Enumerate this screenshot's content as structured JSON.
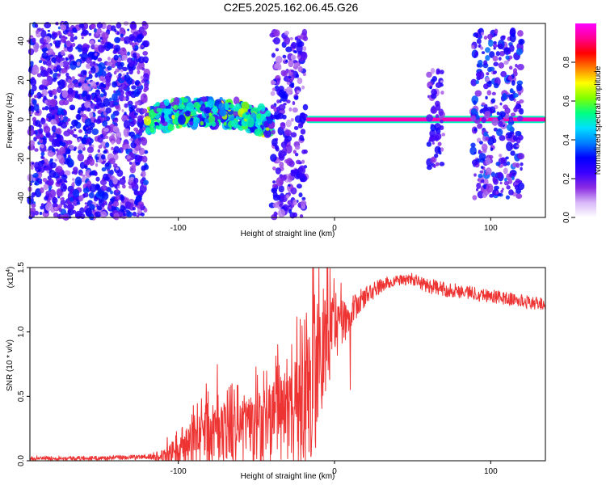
{
  "title": "C2E5.2025.162.06.45.G26",
  "chart_data": [
    {
      "type": "heatmap",
      "xlabel": "Height of straight line (km)",
      "ylabel": "Frequency (Hz)",
      "xlim": [
        -195,
        135
      ],
      "ylim": [
        -50,
        49
      ],
      "xticks": [
        -100,
        0,
        100
      ],
      "yticks": [
        -40,
        -20,
        0,
        20,
        40
      ],
      "colorbar": {
        "label": "Normalized spectral amplitude",
        "range": [
          0,
          1
        ],
        "ticks": [
          "0.0",
          "0.2",
          "0.4",
          "0.6",
          "0.8"
        ],
        "tick_values": [
          0.0,
          0.2,
          0.4,
          0.6,
          0.8
        ],
        "colormap": [
          "#ffffff",
          "#d8b8f8",
          "#8a2be2",
          "#3a00ff",
          "#0000ff",
          "#0080ff",
          "#00e0ff",
          "#00ff80",
          "#80ff00",
          "#ffff00",
          "#ff8000",
          "#ff0000",
          "#ff0090",
          "#ff00ff"
        ]
      },
      "regions": [
        {
          "x": [
            -195,
            -120
          ],
          "f": [
            -50,
            49
          ],
          "kind": "broadband_noise",
          "level": 0.28
        },
        {
          "x": [
            -120,
            -40
          ],
          "f": [
            -8,
            9
          ],
          "kind": "coherent_track",
          "level": 0.45
        },
        {
          "x": [
            -40,
            -18
          ],
          "f": [
            -50,
            45
          ],
          "kind": "burst",
          "level": 0.25
        },
        {
          "x": [
            -18,
            135
          ],
          "f": [
            -1,
            1
          ],
          "kind": "carrier_line",
          "level": 0.95
        },
        {
          "x": [
            60,
            70
          ],
          "f": [
            -25,
            25
          ],
          "kind": "burst",
          "level": 0.25
        },
        {
          "x": [
            88,
            120
          ],
          "f": [
            -40,
            45
          ],
          "kind": "burst",
          "level": 0.3
        }
      ]
    },
    {
      "type": "line",
      "xlabel": "Height of straight line (km)",
      "ylabel": "SNR (10 * v/v)",
      "yscale_label": "(x10",
      "yscale_exp": "4",
      "yscale_close": ")",
      "xlim": [
        -195,
        135
      ],
      "ylim": [
        0,
        1.5
      ],
      "xticks": [
        -100,
        0,
        100
      ],
      "yticks": [
        0.0,
        0.5,
        1.0,
        1.5
      ],
      "ytick_labels": [
        "0.0",
        "0.5",
        "1.0",
        "1.5"
      ],
      "color": "#ee3333",
      "envelope": {
        "x": [
          -195,
          -150,
          -120,
          -110,
          -100,
          -90,
          -80,
          -70,
          -60,
          -50,
          -40,
          -30,
          -25,
          -20,
          -15,
          -12,
          -10,
          -5,
          0,
          5,
          10,
          15,
          20,
          30,
          40,
          50,
          55,
          60,
          70,
          80,
          90,
          100,
          110,
          120,
          130,
          135
        ],
        "y": [
          0.02,
          0.02,
          0.03,
          0.04,
          0.06,
          0.14,
          0.18,
          0.2,
          0.2,
          0.24,
          0.28,
          0.32,
          0.36,
          0.42,
          0.55,
          0.68,
          0.85,
          0.95,
          1.0,
          1.06,
          1.14,
          1.22,
          1.28,
          1.36,
          1.4,
          1.41,
          1.38,
          1.36,
          1.33,
          1.32,
          1.3,
          1.28,
          1.26,
          1.24,
          1.22,
          1.22
        ]
      },
      "noise": {
        "x": [
          -195,
          -120,
          -110,
          -100,
          -80,
          -60,
          -40,
          -30,
          -20,
          -12,
          -5,
          0,
          10,
          20,
          40,
          60,
          135
        ],
        "amp": [
          0.015,
          0.02,
          0.05,
          0.14,
          0.22,
          0.25,
          0.32,
          0.4,
          0.5,
          0.6,
          0.4,
          0.25,
          0.12,
          0.08,
          0.04,
          0.06,
          0.05
        ]
      },
      "spikes": [
        {
          "x": -14,
          "y": 1.5
        },
        {
          "x": -18,
          "y": 1.15
        },
        {
          "x": -22,
          "y": 1.1
        },
        {
          "x": -12,
          "y": 0.1
        },
        {
          "x": 10,
          "y": 0.55
        },
        {
          "x": -75,
          "y": 0.75
        },
        {
          "x": -82,
          "y": 0.6
        }
      ]
    }
  ]
}
